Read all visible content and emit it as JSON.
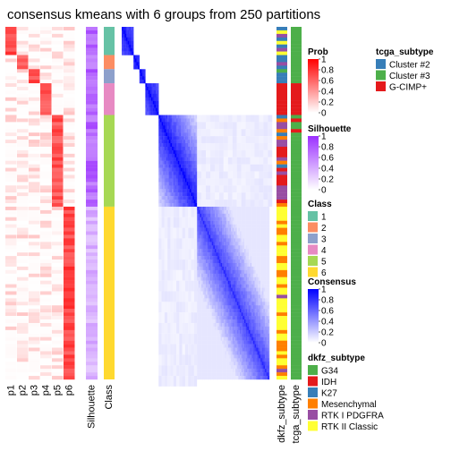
{
  "chart_data": {
    "type": "heatmap",
    "title": "consensus kmeans with 6 groups from 250 partitions",
    "row_count": 100,
    "class_sizes": [
      8,
      4,
      4,
      9,
      26,
      49
    ],
    "class_colors": [
      "#66C2A5",
      "#FC8D62",
      "#8DA0CB",
      "#E78AC3",
      "#A6D854",
      "#FFD92F"
    ],
    "prob_columns": [
      "p1",
      "p2",
      "p3",
      "p4",
      "p5",
      "p6"
    ],
    "silhouette_label": "Silhouette",
    "class_label": "Class",
    "annotation_columns": [
      "dkfz_subtype",
      "tcga_subtype"
    ],
    "legends": {
      "prob": {
        "title": "Prob",
        "ticks": [
          "1",
          "0.8",
          "0.6",
          "0.4",
          "0.2",
          "0"
        ]
      },
      "silhouette": {
        "title": "Silhouette",
        "ticks": [
          "1",
          "0.8",
          "0.6",
          "0.4",
          "0.2",
          "0"
        ]
      },
      "class": {
        "title": "Class",
        "items": [
          {
            "label": "1",
            "color": "#66C2A5"
          },
          {
            "label": "2",
            "color": "#FC8D62"
          },
          {
            "label": "3",
            "color": "#8DA0CB"
          },
          {
            "label": "4",
            "color": "#E78AC3"
          },
          {
            "label": "5",
            "color": "#A6D854"
          },
          {
            "label": "6",
            "color": "#FFD92F"
          }
        ]
      },
      "consensus": {
        "title": "Consensus",
        "ticks": [
          "1",
          "0.8",
          "0.6",
          "0.4",
          "0.2",
          "0"
        ]
      },
      "dkfz_subtype": {
        "title": "dkfz_subtype",
        "items": [
          {
            "label": "G34",
            "color": "#4DAF4A"
          },
          {
            "label": "IDH",
            "color": "#E41A1C"
          },
          {
            "label": "K27",
            "color": "#377EB8"
          },
          {
            "label": "Mesenchymal",
            "color": "#FF7F00"
          },
          {
            "label": "RTK I PDGFRA",
            "color": "#984EA3"
          },
          {
            "label": "RTK II Classic",
            "color": "#FFFF33"
          }
        ]
      },
      "tcga_subtype": {
        "title": "tcga_subtype",
        "items": [
          {
            "label": "Cluster #2",
            "color": "#377EB8"
          },
          {
            "label": "Cluster #3",
            "color": "#4DAF4A"
          },
          {
            "label": "G-CIMP+",
            "color": "#E41A1C"
          }
        ]
      }
    }
  }
}
